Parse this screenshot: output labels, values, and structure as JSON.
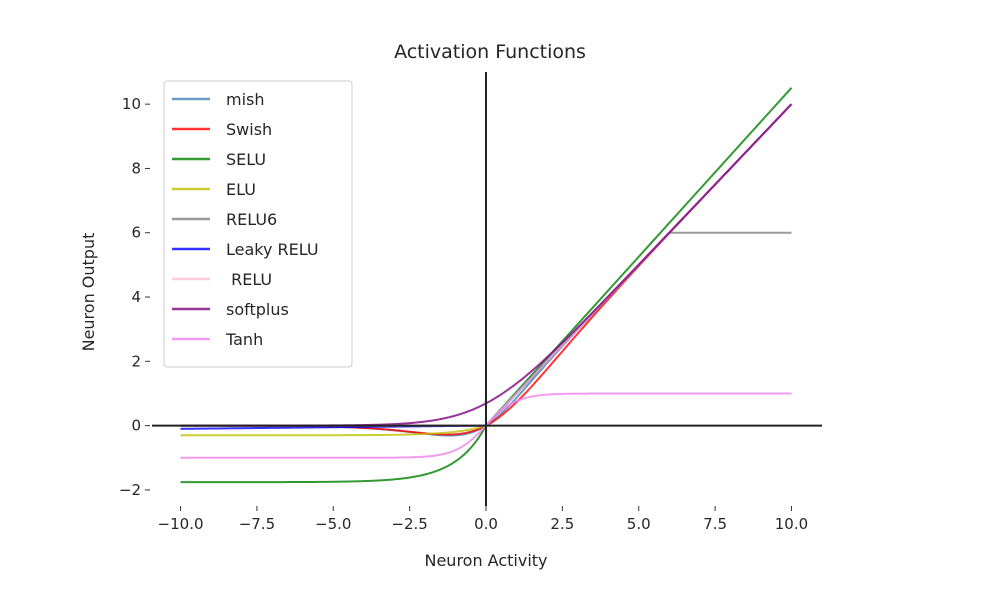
{
  "chart_data": {
    "type": "line",
    "title": "Activation Functions",
    "xlabel": "Neuron Activity",
    "ylabel": "Neuron Output",
    "xlim": [
      -11,
      11
    ],
    "ylim": [
      -2.5,
      11
    ],
    "xticks": [
      -10.0,
      -7.5,
      -5.0,
      -2.5,
      0.0,
      2.5,
      5.0,
      7.5,
      10.0
    ],
    "xtick_labels": [
      "−10.0",
      "−7.5",
      "−5.0",
      "−2.5",
      "0.0",
      "2.5",
      "5.0",
      "7.5",
      "10.0"
    ],
    "yticks": [
      -2,
      0,
      2,
      4,
      6,
      8,
      10
    ],
    "ytick_labels": [
      "−2",
      "0",
      "2",
      "4",
      "6",
      "8",
      "10"
    ],
    "grid": false,
    "legend_position": "upper-left",
    "reference_lines": [
      "x=0",
      "y=0"
    ],
    "x_range": [
      -10,
      10
    ],
    "series": [
      {
        "name": "mish",
        "color": "#4682b4",
        "func": "mish"
      },
      {
        "name": "Swish",
        "color": "#ff0000",
        "func": "swish"
      },
      {
        "name": "SELU",
        "color": "#008000",
        "func": "selu"
      },
      {
        "name": "ELU",
        "color": "#bfbf00",
        "func": "elu"
      },
      {
        "name": "RELU6",
        "color": "#808080",
        "func": "relu6"
      },
      {
        "name": "Leaky RELU",
        "color": "#0000ff",
        "func": "leaky_relu"
      },
      {
        "name": " RELU",
        "color": "#ffc0cb",
        "func": "relu"
      },
      {
        "name": "softplus",
        "color": "#800080",
        "func": "softplus"
      },
      {
        "name": "Tanh",
        "color": "#ee82ee",
        "func": "tanh"
      }
    ]
  }
}
